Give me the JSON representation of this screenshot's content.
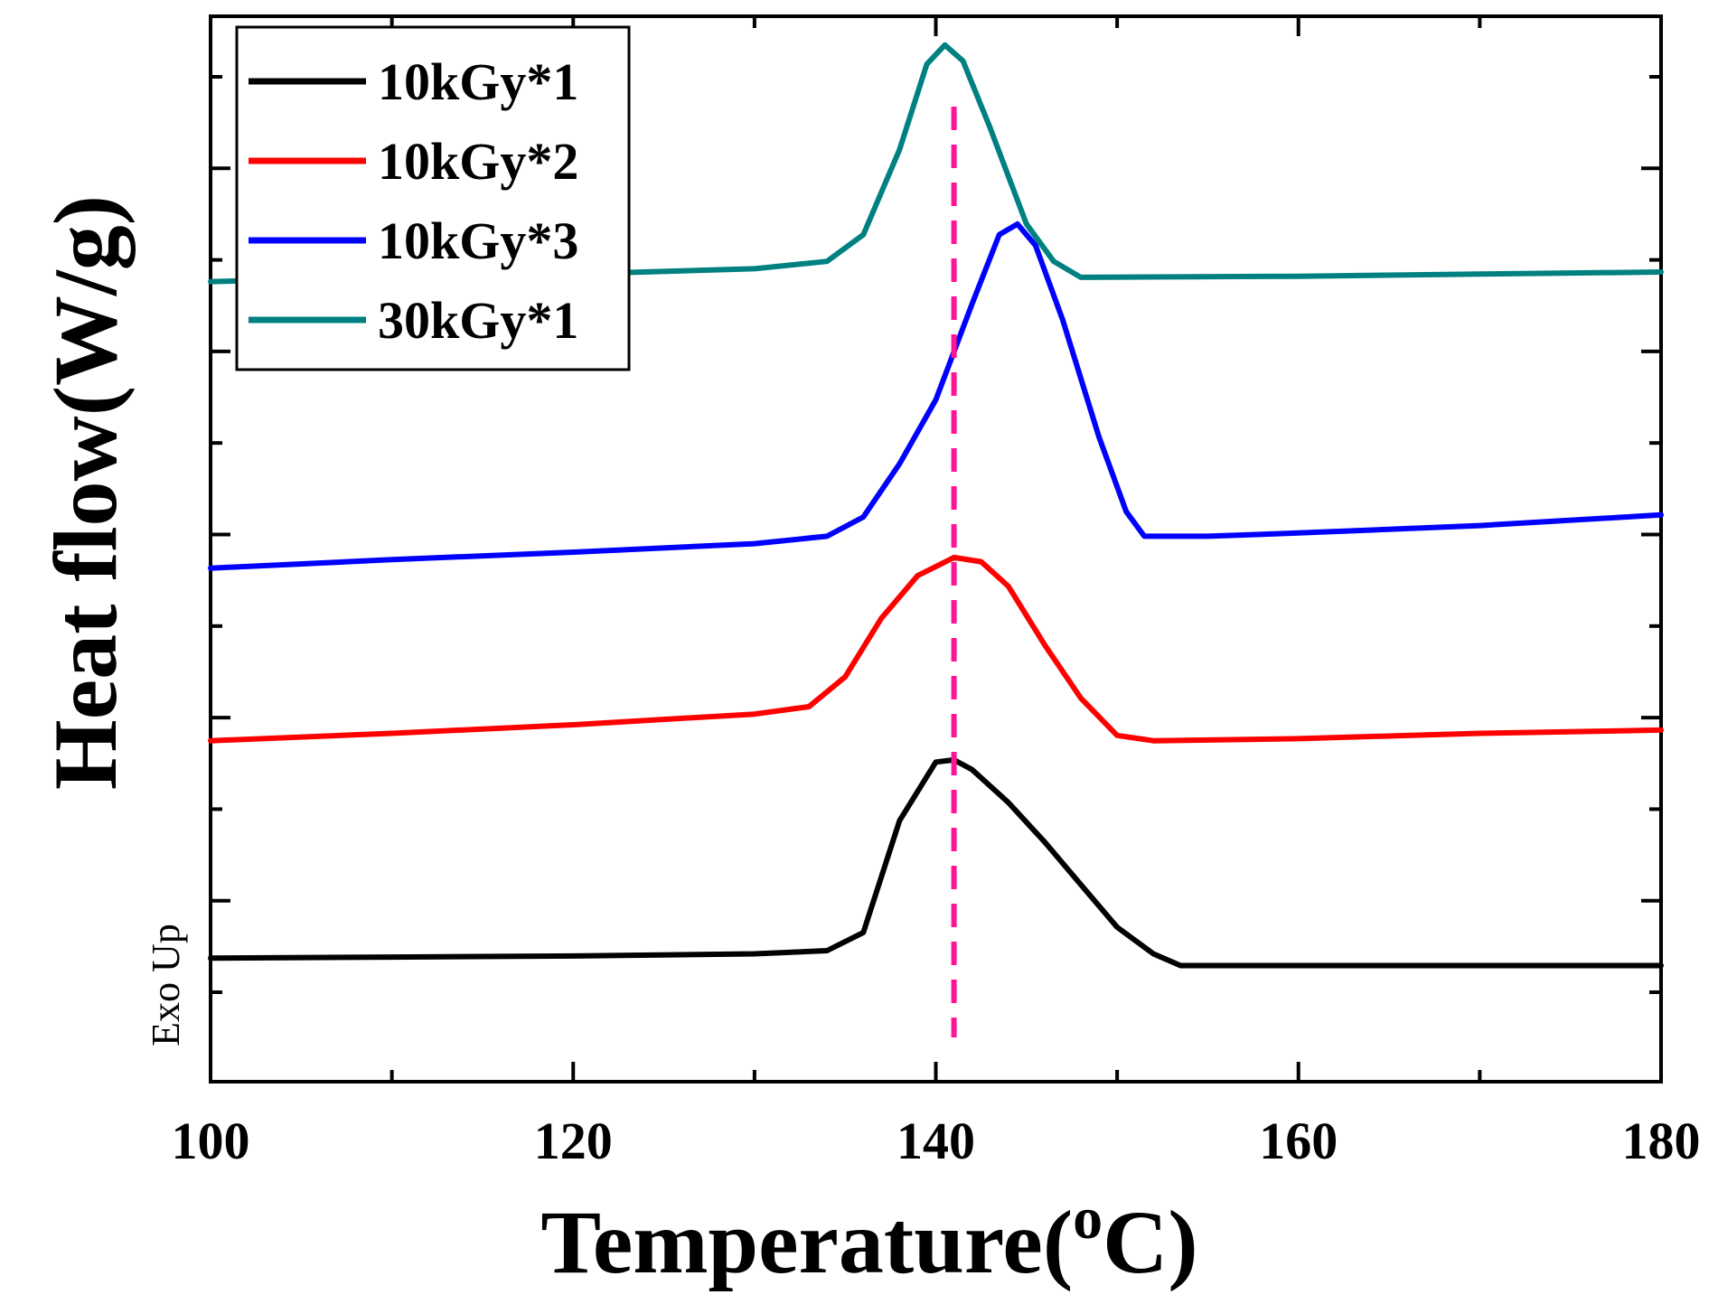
{
  "chart_data": {
    "type": "line",
    "title": "",
    "xlabel": "Temperature(",
    "xlabel_superscript": "o",
    "xlabel_suffix": "C)",
    "ylabel": "Heat flow(W/g)",
    "annotation": "Exo Up",
    "xlim": [
      100,
      180
    ],
    "x_ticks": [
      100,
      120,
      140,
      160,
      180
    ],
    "x_tick_labels": [
      "100",
      "120",
      "140",
      "160",
      "180"
    ],
    "y_ticks_shown": false,
    "reference_line": {
      "x": 141,
      "color": "#ff1493",
      "style": "dashed"
    },
    "legend_position": "top-left",
    "series": [
      {
        "name": "10kGy*1",
        "color": "#000000",
        "points": [
          [
            100,
            0.16
          ],
          [
            110,
            0.17
          ],
          [
            120,
            0.18
          ],
          [
            130,
            0.2
          ],
          [
            134,
            0.23
          ],
          [
            136,
            0.4
          ],
          [
            138,
            1.45
          ],
          [
            140,
            2.0
          ],
          [
            141,
            2.02
          ],
          [
            142,
            1.93
          ],
          [
            144,
            1.62
          ],
          [
            146,
            1.25
          ],
          [
            148,
            0.85
          ],
          [
            150,
            0.45
          ],
          [
            152,
            0.2
          ],
          [
            153.5,
            0.09
          ],
          [
            160,
            0.09
          ],
          [
            170,
            0.09
          ],
          [
            180,
            0.09
          ]
        ]
      },
      {
        "name": "10kGy*2",
        "color": "#ff0000",
        "points": [
          [
            100,
            2.2
          ],
          [
            110,
            2.27
          ],
          [
            120,
            2.35
          ],
          [
            130,
            2.45
          ],
          [
            133,
            2.52
          ],
          [
            135,
            2.8
          ],
          [
            137,
            3.35
          ],
          [
            139,
            3.75
          ],
          [
            141,
            3.92
          ],
          [
            142.5,
            3.88
          ],
          [
            144,
            3.65
          ],
          [
            146,
            3.1
          ],
          [
            148,
            2.6
          ],
          [
            150,
            2.25
          ],
          [
            152,
            2.2
          ],
          [
            160,
            2.22
          ],
          [
            170,
            2.27
          ],
          [
            180,
            2.3
          ]
        ]
      },
      {
        "name": "10kGy*3",
        "color": "#0000ff",
        "points": [
          [
            100,
            3.82
          ],
          [
            110,
            3.9
          ],
          [
            120,
            3.97
          ],
          [
            130,
            4.05
          ],
          [
            134,
            4.12
          ],
          [
            136,
            4.3
          ],
          [
            138,
            4.8
          ],
          [
            140,
            5.4
          ],
          [
            142,
            6.3
          ],
          [
            143.5,
            6.95
          ],
          [
            144.5,
            7.05
          ],
          [
            145.5,
            6.85
          ],
          [
            147,
            6.15
          ],
          [
            149,
            5.05
          ],
          [
            150.5,
            4.35
          ],
          [
            151.5,
            4.12
          ],
          [
            155,
            4.12
          ],
          [
            160,
            4.15
          ],
          [
            170,
            4.22
          ],
          [
            180,
            4.32
          ]
        ]
      },
      {
        "name": "30kGy*1",
        "color": "#008080",
        "points": [
          [
            100,
            6.51
          ],
          [
            110,
            6.55
          ],
          [
            120,
            6.58
          ],
          [
            130,
            6.63
          ],
          [
            134,
            6.7
          ],
          [
            136,
            6.95
          ],
          [
            138,
            7.75
          ],
          [
            139.5,
            8.55
          ],
          [
            140.5,
            8.73
          ],
          [
            141.5,
            8.58
          ],
          [
            143,
            7.95
          ],
          [
            145,
            7.05
          ],
          [
            146.5,
            6.7
          ],
          [
            148,
            6.55
          ],
          [
            160,
            6.56
          ],
          [
            170,
            6.58
          ],
          [
            180,
            6.6
          ]
        ]
      }
    ]
  }
}
